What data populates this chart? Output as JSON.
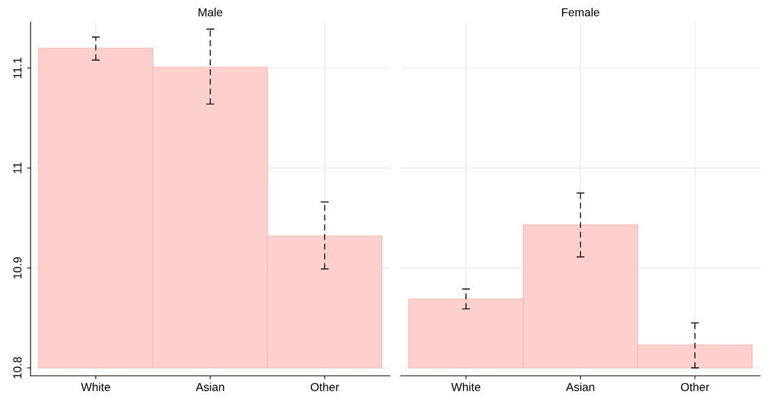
{
  "chart_data": [
    {
      "type": "bar",
      "title": "Male",
      "categories": [
        "White",
        "Asian",
        "Other"
      ],
      "base": [
        10.8,
        10.8,
        10.8
      ],
      "values": [
        0.32,
        0.301,
        0.132
      ],
      "errors": [
        [
          11.108,
          11.131
        ],
        [
          11.064,
          11.139
        ],
        [
          10.899,
          10.966
        ]
      ],
      "color": "#fcd0cd",
      "ylim": [
        10.792,
        11.146
      ],
      "yticks": [
        10.8,
        10.9,
        11,
        11.1
      ],
      "grid": true
    },
    {
      "type": "bar",
      "title": "Female",
      "categories": [
        "White",
        "Asian",
        "Other"
      ],
      "base": [
        10.8,
        10.8,
        10.8
      ],
      "values": [
        0.069,
        0.143,
        0.023
      ],
      "errors": [
        [
          10.859,
          10.879
        ],
        [
          10.911,
          10.975
        ],
        [
          10.8,
          10.845
        ]
      ],
      "color": "#fcd0cd",
      "ylim": [
        10.792,
        11.146
      ],
      "yticks": [
        10.8,
        10.9,
        11,
        11.1
      ],
      "grid": true,
      "tick_labels": "x"
    }
  ]
}
